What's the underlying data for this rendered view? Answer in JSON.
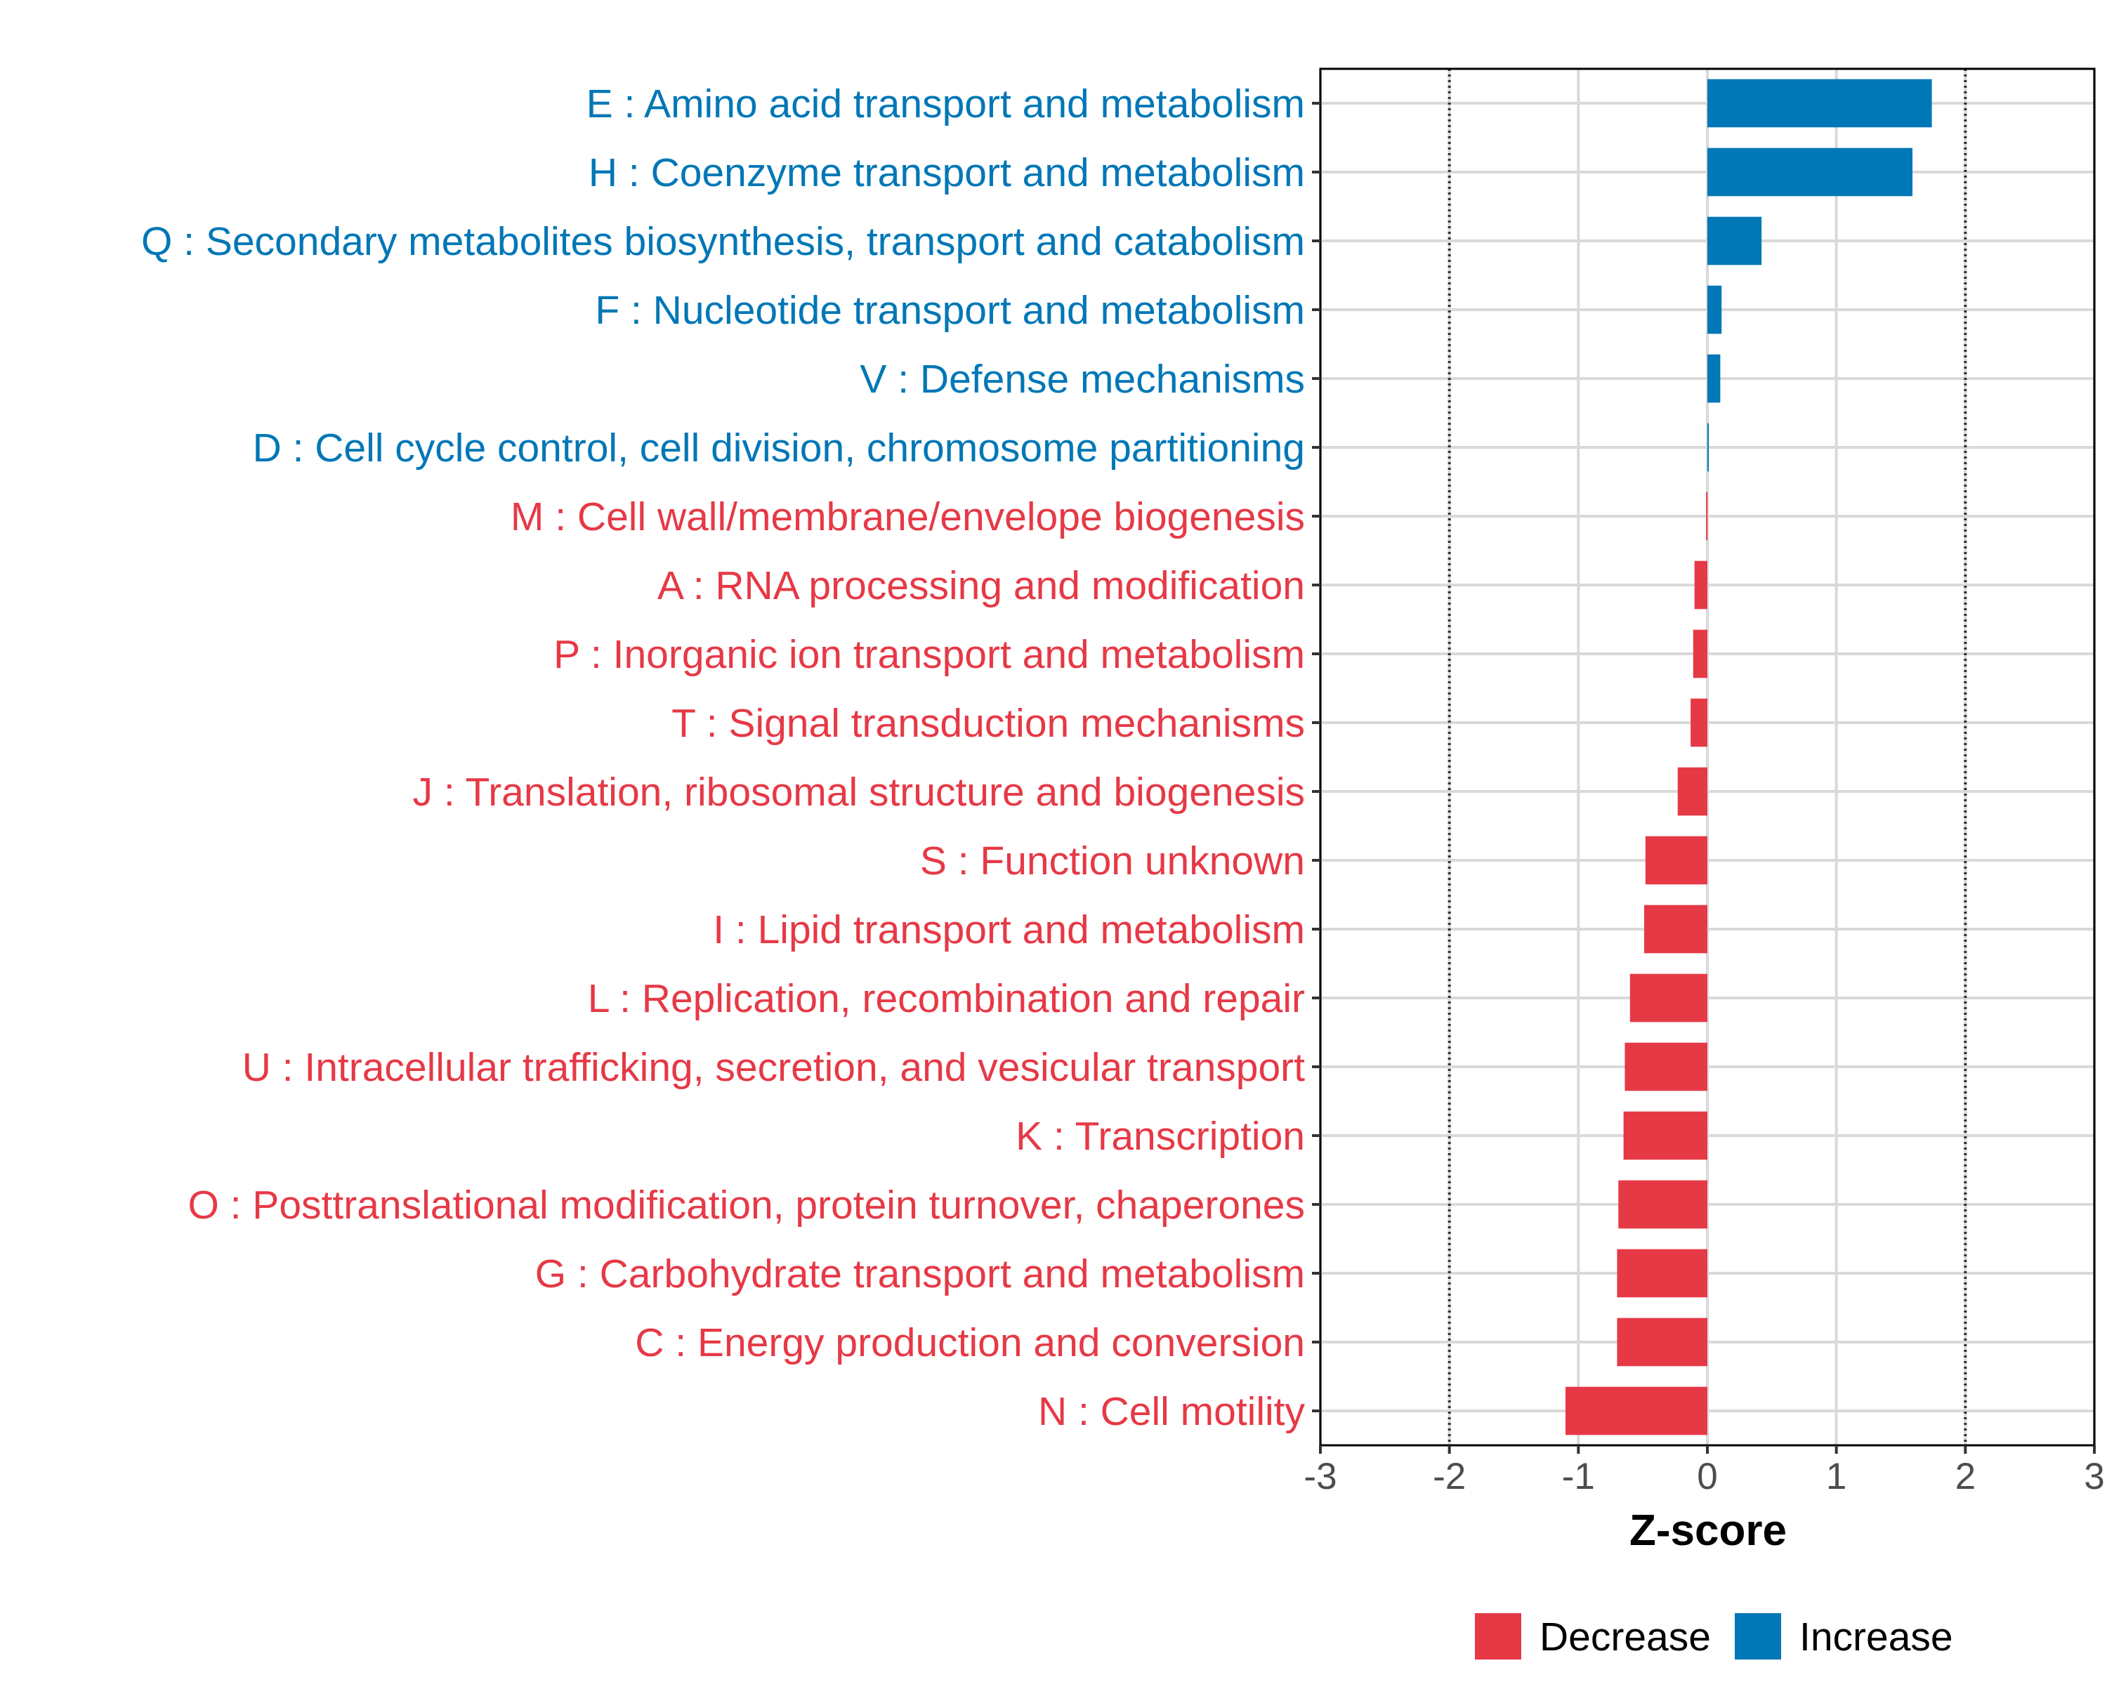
{
  "chart_data": {
    "type": "bar",
    "orientation": "horizontal",
    "title": "",
    "xlabel": "Z-score",
    "ylabel": "",
    "xlim": [
      -3,
      3
    ],
    "xticks": [
      "-3",
      "-2",
      "-1",
      "0",
      "1",
      "2",
      "3"
    ],
    "reference_lines": [
      -2,
      2
    ],
    "grid": true,
    "legend_position": "bottom",
    "colors": {
      "Decrease": "#e63946",
      "Increase": "#0077b6"
    },
    "legend": [
      {
        "label": "Decrease",
        "color": "#e63946"
      },
      {
        "label": "Increase",
        "color": "#0077b6"
      }
    ],
    "categories": [
      {
        "label": "E : Amino acid transport and metabolism",
        "value": 1.74,
        "group": "Increase"
      },
      {
        "label": "H : Coenzyme transport and metabolism",
        "value": 1.59,
        "group": "Increase"
      },
      {
        "label": "Q : Secondary metabolites biosynthesis, transport and catabolism",
        "value": 0.42,
        "group": "Increase"
      },
      {
        "label": "F : Nucleotide transport and metabolism",
        "value": 0.11,
        "group": "Increase"
      },
      {
        "label": "V : Defense mechanisms",
        "value": 0.1,
        "group": "Increase"
      },
      {
        "label": "D : Cell cycle control, cell division, chromosome partitioning",
        "value": 0.01,
        "group": "Increase"
      },
      {
        "label": "M : Cell wall/membrane/envelope biogenesis",
        "value": -0.01,
        "group": "Decrease"
      },
      {
        "label": "A : RNA processing and modification",
        "value": -0.1,
        "group": "Decrease"
      },
      {
        "label": "P : Inorganic ion transport and metabolism",
        "value": -0.11,
        "group": "Decrease"
      },
      {
        "label": "T : Signal transduction mechanisms",
        "value": -0.13,
        "group": "Decrease"
      },
      {
        "label": "J : Translation, ribosomal structure and biogenesis",
        "value": -0.23,
        "group": "Decrease"
      },
      {
        "label": "S : Function unknown",
        "value": -0.48,
        "group": "Decrease"
      },
      {
        "label": "I : Lipid transport and metabolism",
        "value": -0.49,
        "group": "Decrease"
      },
      {
        "label": "L : Replication, recombination and repair",
        "value": -0.6,
        "group": "Decrease"
      },
      {
        "label": "U : Intracellular trafficking, secretion, and vesicular transport",
        "value": -0.64,
        "group": "Decrease"
      },
      {
        "label": "K : Transcription",
        "value": -0.65,
        "group": "Decrease"
      },
      {
        "label": "O : Posttranslational modification, protein turnover, chaperones",
        "value": -0.69,
        "group": "Decrease"
      },
      {
        "label": "G : Carbohydrate transport and metabolism",
        "value": -0.7,
        "group": "Decrease"
      },
      {
        "label": "C : Energy production and conversion",
        "value": -0.7,
        "group": "Decrease"
      },
      {
        "label": "N : Cell motility",
        "value": -1.1,
        "group": "Decrease"
      }
    ]
  }
}
